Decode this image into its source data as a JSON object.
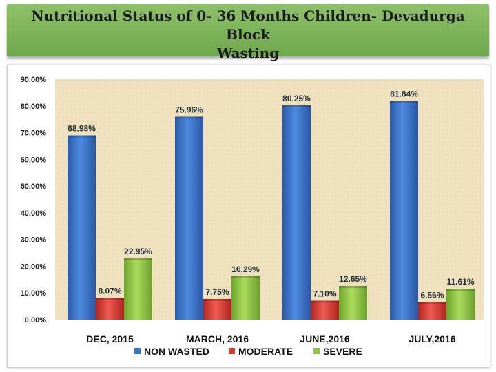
{
  "title_line1": "Nutritional Status of  0- 36 Months Children- Devadurga  Block",
  "title_line2": "Wasting",
  "colors": {
    "title_band": "#7ab356",
    "plot_background": "#efe1bd",
    "non_wasted": "#3b72c8",
    "moderate": "#d93b35",
    "severe": "#8fc641"
  },
  "chart_data": {
    "type": "bar",
    "categories": [
      "DEC, 2015",
      "MARCH, 2016",
      "JUNE,2016",
      "JULY,2016"
    ],
    "series": [
      {
        "name": "NON WASTED",
        "values": [
          68.98,
          75.96,
          80.25,
          81.84
        ],
        "labels": [
          "68.98%",
          "75.96%",
          "80.25%",
          "81.84%"
        ]
      },
      {
        "name": "MODERATE",
        "values": [
          8.07,
          7.75,
          7.1,
          6.56
        ],
        "labels": [
          "8.07%",
          "7.75%",
          "7.10%",
          "6.56%"
        ]
      },
      {
        "name": "SEVERE",
        "values": [
          22.95,
          16.29,
          12.65,
          11.61
        ],
        "labels": [
          "22.95%",
          "16.29%",
          "12.65%",
          "11.61%"
        ]
      }
    ],
    "y_ticks": [
      "0.00%",
      "10.00%",
      "20.00%",
      "30.00%",
      "40.00%",
      "50.00%",
      "60.00%",
      "70.00%",
      "80.00%",
      "90.00%"
    ],
    "ylim": [
      0,
      90
    ],
    "legend_position": "bottom",
    "grid": false
  }
}
